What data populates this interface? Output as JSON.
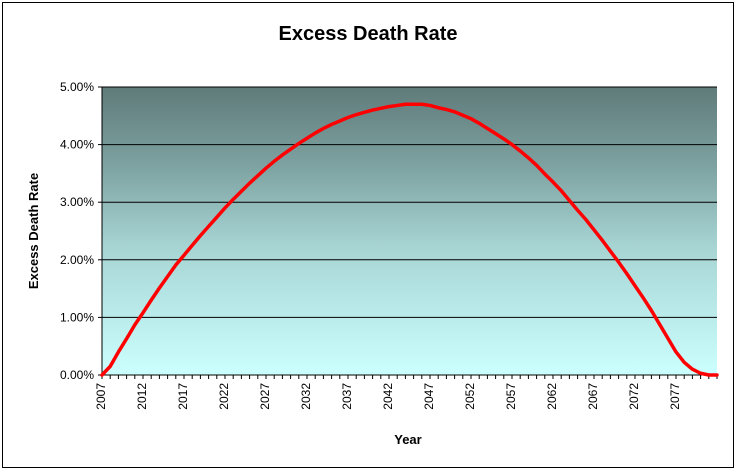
{
  "chart_data": {
    "type": "line",
    "title": "Excess Death Rate",
    "xlabel": "Year",
    "ylabel": "Excess Death Rate",
    "xlim": [
      2007,
      2082
    ],
    "ylim": [
      0,
      0.05
    ],
    "x_ticks": [
      "2007",
      "2012",
      "2017",
      "2022",
      "2027",
      "2032",
      "2037",
      "2042",
      "2047",
      "2052",
      "2057",
      "2062",
      "2067",
      "2072",
      "2077"
    ],
    "y_ticks": [
      "0.00%",
      "1.00%",
      "2.00%",
      "3.00%",
      "4.00%",
      "5.00%"
    ],
    "grid": "horizontal",
    "legend": "none",
    "colors": {
      "line": "#ff0000",
      "plot_top": "#5f7b7a",
      "plot_bottom": "#ccffff",
      "gridline": "#000000",
      "frame": "#000000"
    },
    "series": [
      {
        "x": [
          2007,
          2008,
          2009,
          2010,
          2011,
          2012,
          2013,
          2014,
          2015,
          2016,
          2017,
          2018,
          2019,
          2020,
          2021,
          2022,
          2023,
          2024,
          2025,
          2026,
          2027,
          2028,
          2029,
          2030,
          2031,
          2032,
          2033,
          2034,
          2035,
          2036,
          2037,
          2038,
          2039,
          2040,
          2041,
          2042,
          2043,
          2044,
          2045,
          2046,
          2047,
          2048,
          2049,
          2050,
          2051,
          2052,
          2053,
          2054,
          2055,
          2056,
          2057,
          2058,
          2059,
          2060,
          2061,
          2062,
          2063,
          2064,
          2065,
          2066,
          2067,
          2068,
          2069,
          2070,
          2071,
          2072,
          2073,
          2074,
          2075,
          2076,
          2077,
          2078,
          2079,
          2080,
          2081,
          2082
        ],
        "values": [
          0.0,
          0.0015,
          0.004,
          0.0063,
          0.0087,
          0.0108,
          0.013,
          0.0151,
          0.0171,
          0.0191,
          0.0208,
          0.0225,
          0.0242,
          0.0258,
          0.0274,
          0.029,
          0.0305,
          0.0319,
          0.0333,
          0.0346,
          0.0359,
          0.0371,
          0.0382,
          0.0392,
          0.0402,
          0.0411,
          0.042,
          0.0428,
          0.0435,
          0.0441,
          0.0447,
          0.0452,
          0.0456,
          0.046,
          0.0463,
          0.0466,
          0.0468,
          0.047,
          0.047,
          0.047,
          0.0468,
          0.0464,
          0.0461,
          0.0457,
          0.0451,
          0.0445,
          0.0437,
          0.0428,
          0.0419,
          0.041,
          0.04,
          0.0389,
          0.0377,
          0.0364,
          0.0349,
          0.0335,
          0.032,
          0.0303,
          0.0286,
          0.027,
          0.0252,
          0.0234,
          0.0215,
          0.0196,
          0.0176,
          0.0155,
          0.0134,
          0.0112,
          0.0088,
          0.0064,
          0.004,
          0.0022,
          0.001,
          0.0003,
          0.0,
          0.0
        ]
      }
    ]
  }
}
